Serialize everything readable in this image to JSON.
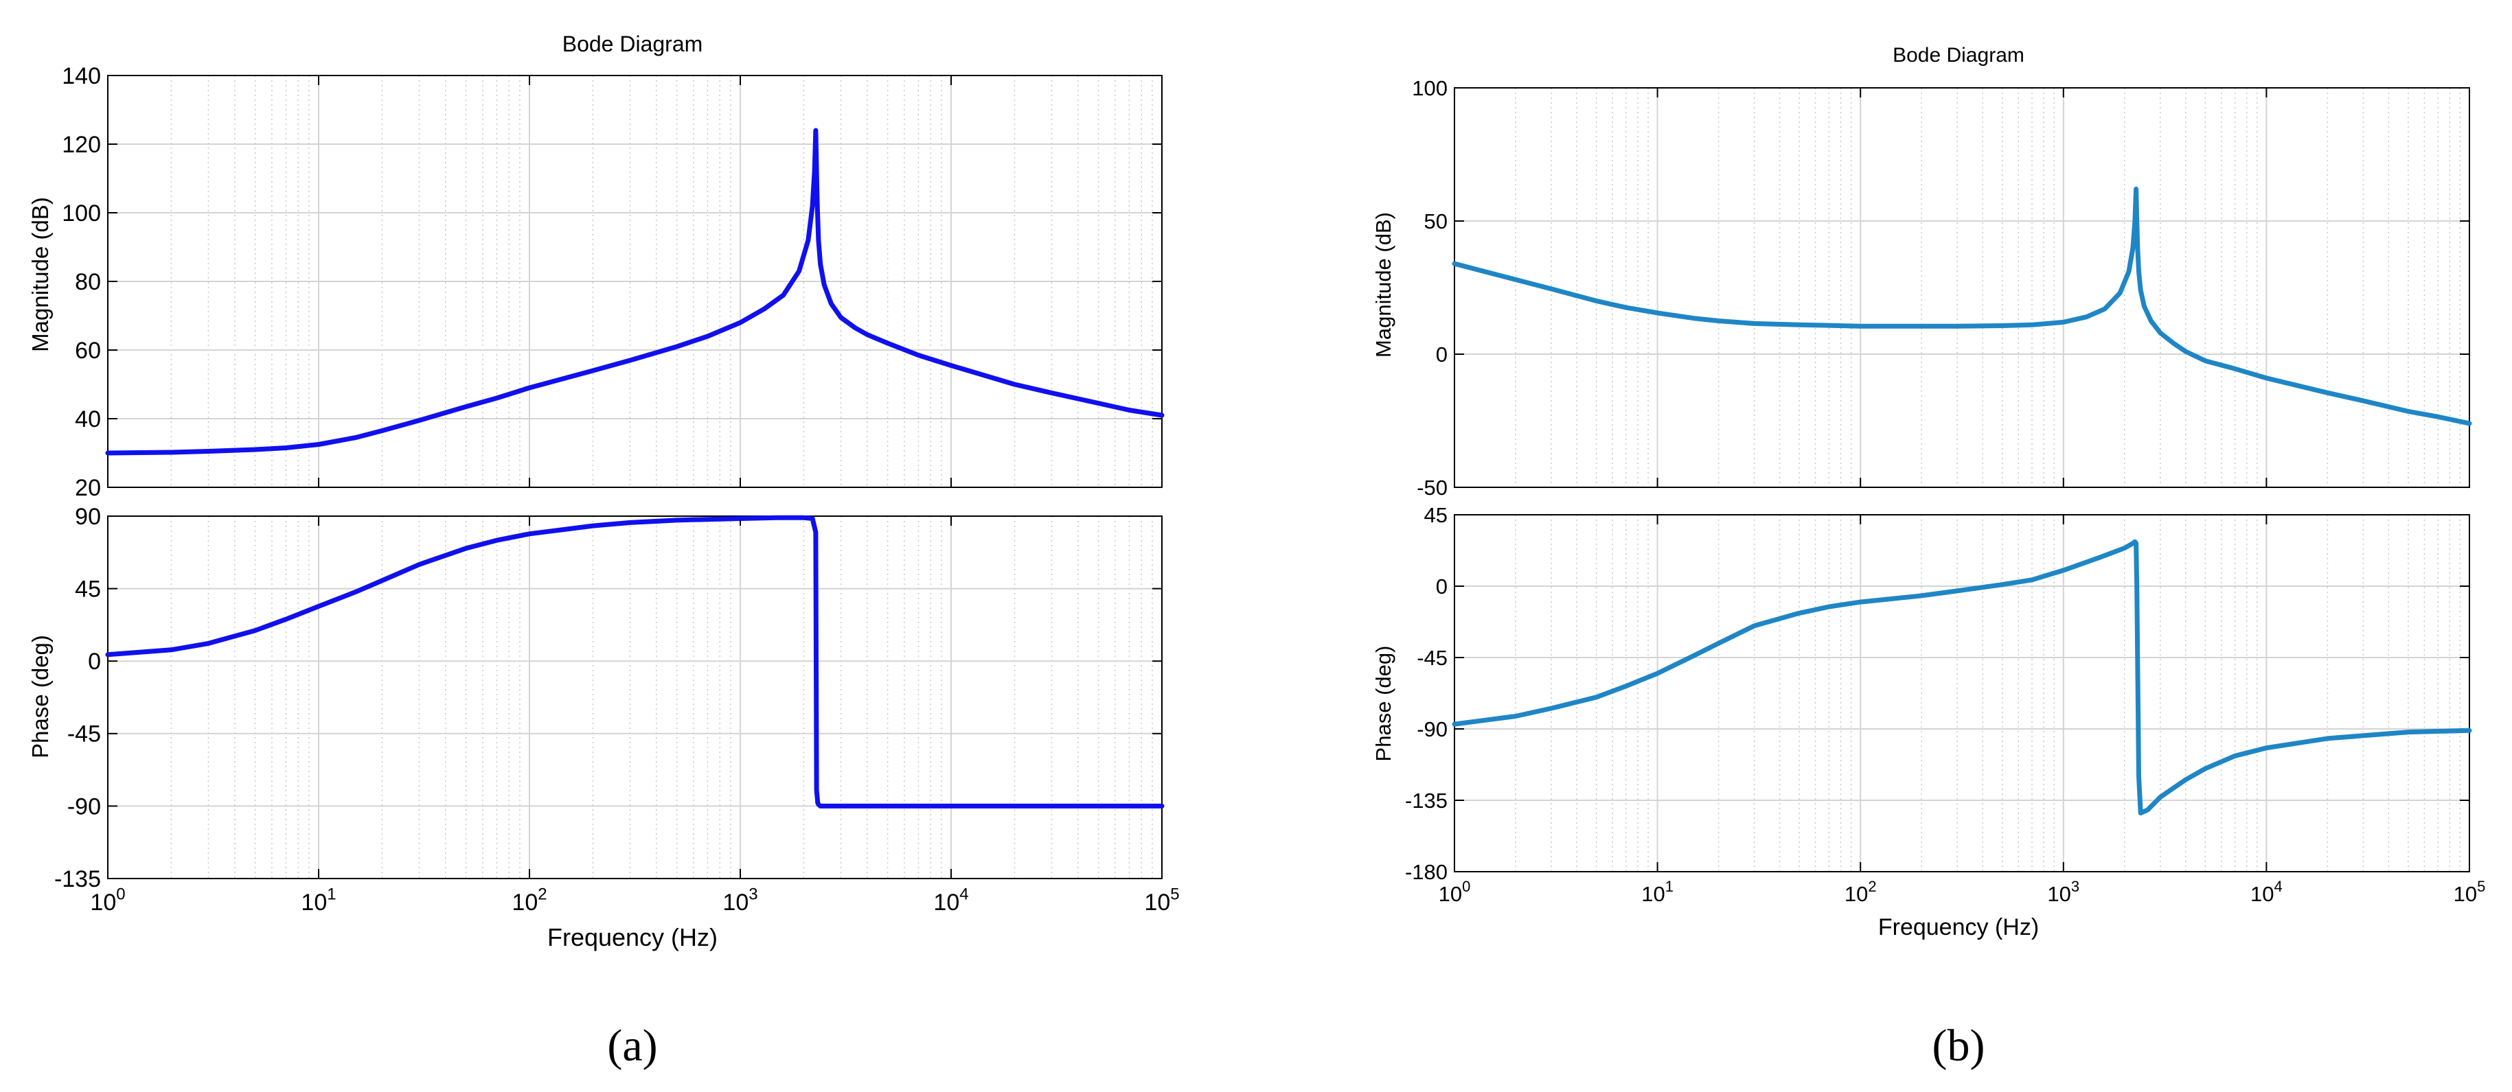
{
  "panels": [
    {
      "caption": "(a)",
      "title": "Bode Diagram",
      "xlabel": "Frequency (Hz)",
      "magnitude": {
        "ylabel": "Magnitude (dB)",
        "ylim": [
          20,
          140
        ],
        "yticks": [
          "20",
          "40",
          "60",
          "80",
          "100",
          "120",
          "140"
        ]
      },
      "phase": {
        "ylabel": "Phase (deg)",
        "ylim": [
          -135,
          90
        ],
        "yticks": [
          "-135",
          "-90",
          "-45",
          "0",
          "45",
          "90"
        ]
      },
      "color": "#1010ee"
    },
    {
      "caption": "(b)",
      "title": "Bode Diagram",
      "xlabel": "Frequency  (Hz)",
      "magnitude": {
        "ylabel": "Magnitude (dB)",
        "ylim": [
          -50,
          100
        ],
        "yticks": [
          "-50",
          "0",
          "50",
          "100"
        ]
      },
      "phase": {
        "ylabel": "Phase (deg)",
        "ylim": [
          -180,
          45
        ],
        "yticks": [
          "-180",
          "-135",
          "-90",
          "-45",
          "0",
          "45"
        ]
      },
      "color": "#1f86c6"
    }
  ],
  "chart_data": [
    {
      "type": "line",
      "title": "Bode Diagram",
      "xlabel": "Frequency (Hz)",
      "xscale": "log",
      "xlim": [
        1,
        100000
      ],
      "xticks": [
        "10^0",
        "10^1",
        "10^2",
        "10^3",
        "10^4",
        "10^5"
      ],
      "grid": true,
      "subplots": [
        {
          "ylabel": "Magnitude (dB)",
          "ylim": [
            20,
            140
          ],
          "x": [
            1,
            2,
            3,
            5,
            7,
            10,
            15,
            20,
            30,
            50,
            70,
            100,
            200,
            300,
            500,
            700,
            1000,
            1300,
            1600,
            1900,
            2100,
            2200,
            2250,
            2280,
            2300,
            2320,
            2350,
            2400,
            2500,
            2700,
            3000,
            3500,
            4000,
            5000,
            7000,
            10000,
            20000,
            30000,
            50000,
            70000,
            100000
          ],
          "y": [
            30,
            30.2,
            30.5,
            31,
            31.5,
            32.5,
            34.5,
            36.5,
            39.5,
            43.5,
            46,
            49,
            54,
            57,
            61,
            64,
            68,
            72,
            76,
            83,
            92,
            102,
            112,
            124,
            112,
            102,
            92,
            85,
            79,
            73.5,
            69.5,
            66.5,
            64.5,
            62,
            58.5,
            55.5,
            50,
            47.5,
            44.5,
            42.5,
            41
          ]
        },
        {
          "ylabel": "Phase (deg)",
          "ylim": [
            -135,
            90
          ],
          "x": [
            1,
            2,
            3,
            5,
            7,
            10,
            15,
            20,
            30,
            50,
            70,
            100,
            200,
            300,
            500,
            700,
            1000,
            1500,
            2000,
            2200,
            2280,
            2290,
            2300,
            2330,
            2350,
            2400,
            2500,
            3000,
            5000,
            10000,
            100000
          ],
          "y": [
            4,
            7,
            11,
            19,
            26,
            34,
            43,
            50,
            60,
            70,
            75,
            79,
            84,
            86,
            87.5,
            88,
            88.5,
            89,
            89,
            88.5,
            80,
            0,
            -80,
            -88,
            -89,
            -90,
            -90,
            -90,
            -90,
            -90,
            -90
          ]
        }
      ]
    },
    {
      "type": "line",
      "title": "Bode Diagram",
      "xlabel": "Frequency  (Hz)",
      "xscale": "log",
      "xlim": [
        1,
        100000
      ],
      "xticks": [
        "10^0",
        "10^1",
        "10^2",
        "10^3",
        "10^4",
        "10^5"
      ],
      "grid": true,
      "subplots": [
        {
          "ylabel": "Magnitude (dB)",
          "ylim": [
            -50,
            100
          ],
          "x": [
            1,
            2,
            3,
            5,
            7,
            10,
            15,
            20,
            30,
            50,
            70,
            100,
            200,
            300,
            500,
            700,
            1000,
            1300,
            1600,
            1900,
            2100,
            2200,
            2250,
            2280,
            2300,
            2320,
            2350,
            2400,
            2500,
            2700,
            3000,
            3500,
            4000,
            5000,
            7000,
            10000,
            20000,
            30000,
            50000,
            70000,
            100000
          ],
          "y": [
            34,
            28,
            24.5,
            20,
            17.5,
            15.5,
            13.5,
            12.5,
            11.5,
            11,
            10.8,
            10.5,
            10.5,
            10.5,
            10.7,
            11,
            12,
            14,
            17,
            23,
            31,
            40,
            50,
            62,
            50,
            40,
            31,
            24,
            18,
            12.5,
            8,
            4,
            1,
            -2.5,
            -5.5,
            -9,
            -14.5,
            -17.5,
            -21.5,
            -23.5,
            -26
          ]
        },
        {
          "ylabel": "Phase (deg)",
          "ylim": [
            -180,
            45
          ],
          "x": [
            1,
            2,
            3,
            5,
            7,
            10,
            15,
            20,
            30,
            50,
            70,
            100,
            200,
            300,
            500,
            700,
            1000,
            1500,
            2000,
            2200,
            2250,
            2280,
            2300,
            2350,
            2400,
            2600,
            3000,
            4000,
            5000,
            7000,
            10000,
            20000,
            50000,
            100000
          ],
          "y": [
            -87,
            -82,
            -77,
            -70,
            -63,
            -55,
            -44,
            -36,
            -25,
            -17,
            -13,
            -10,
            -6,
            -3,
            1,
            4,
            10,
            18,
            24,
            27,
            28,
            27,
            0,
            -120,
            -143,
            -141,
            -133,
            -122,
            -115,
            -107,
            -102,
            -96,
            -92,
            -91
          ]
        }
      ]
    }
  ]
}
